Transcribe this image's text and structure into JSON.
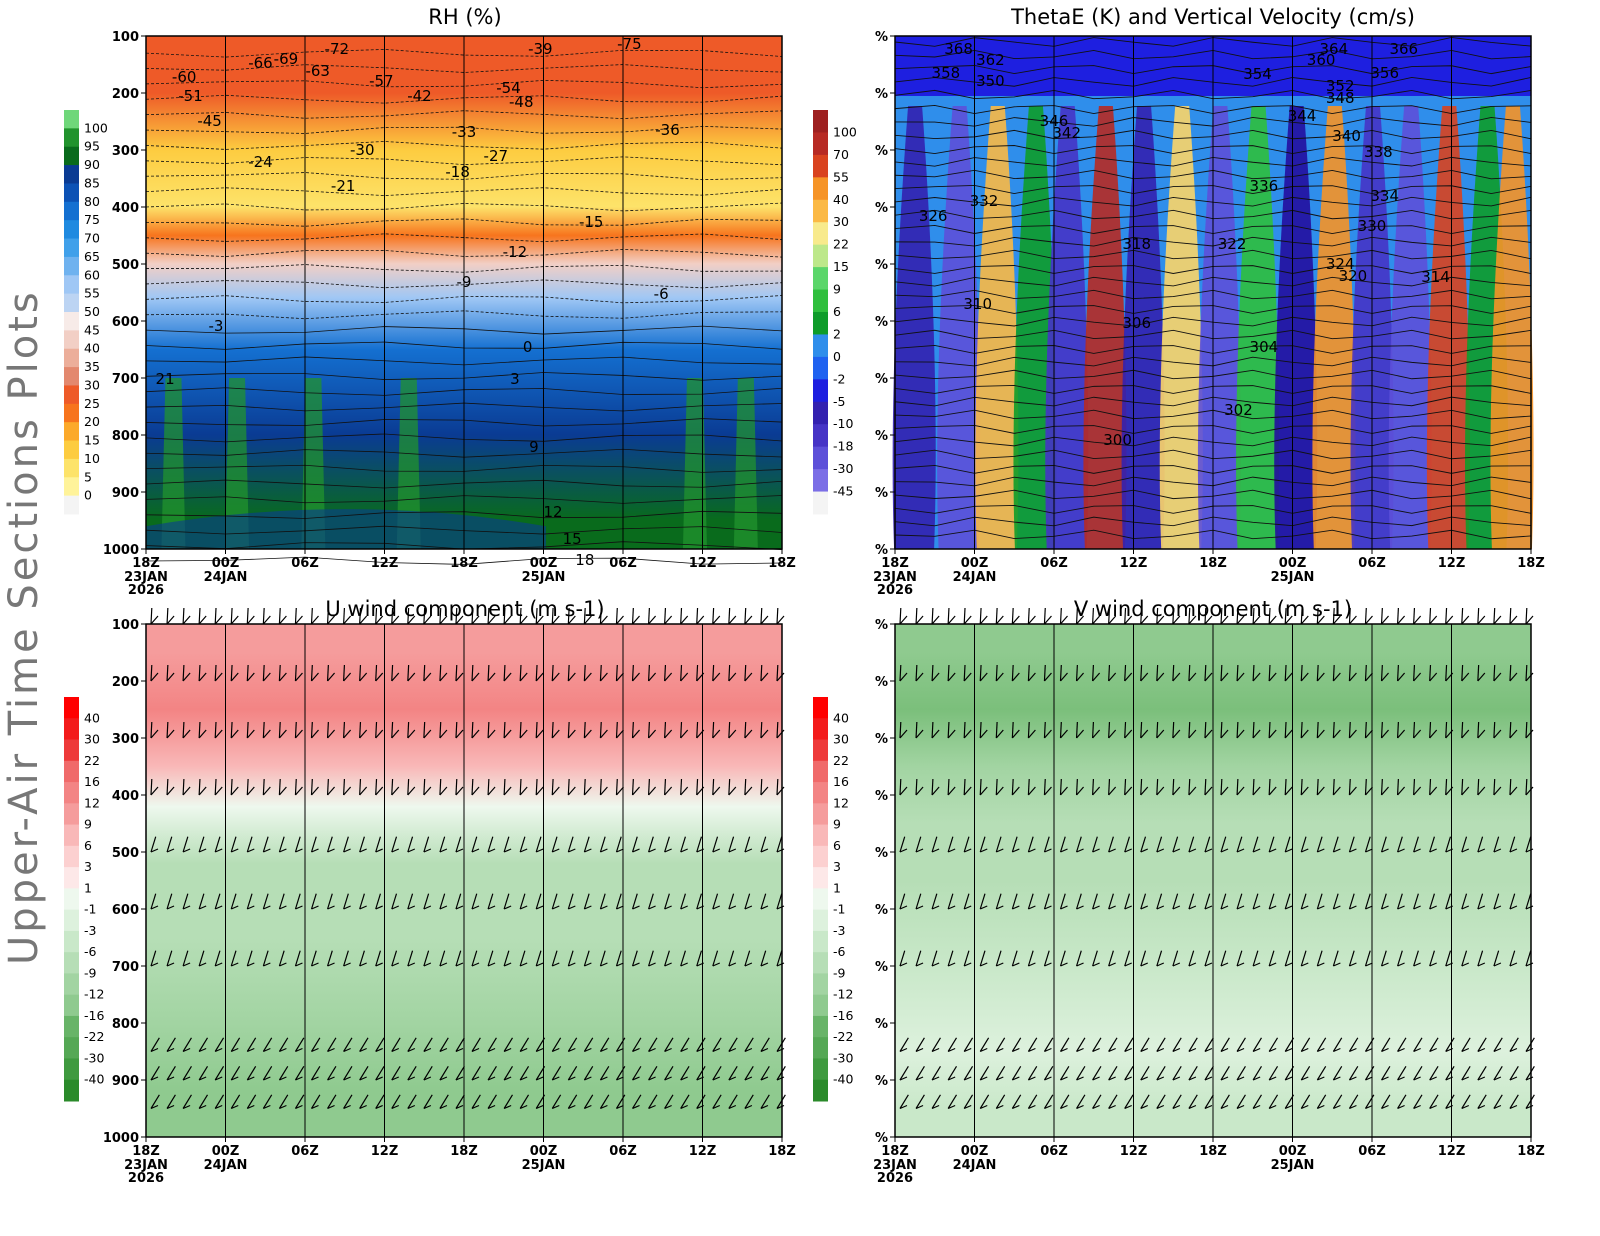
{
  "side_title": "Upper-Air Time Sections Plots",
  "time_axis": {
    "ticks": [
      {
        "label": "18Z",
        "sub": [
          "23JAN",
          "2026"
        ]
      },
      {
        "label": "00Z",
        "sub": [
          "24JAN"
        ]
      },
      {
        "label": "06Z",
        "sub": []
      },
      {
        "label": "12Z",
        "sub": []
      },
      {
        "label": "18Z",
        "sub": []
      },
      {
        "label": "00Z",
        "sub": [
          "25JAN"
        ]
      },
      {
        "label": "06Z",
        "sub": []
      },
      {
        "label": "12Z",
        "sub": []
      },
      {
        "label": "18Z",
        "sub": []
      }
    ]
  },
  "colors": {
    "rh_scale": [
      "#f4f4f4",
      "#fff39a",
      "#fde36a",
      "#fdcc40",
      "#fca92a",
      "#f7741d",
      "#ee5a28",
      "#e3886e",
      "#ecae9a",
      "#f2cfc5",
      "#f7ebe8",
      "#d9e7f9",
      "#bcd4f3",
      "#9fc7f5",
      "#6fb2ef",
      "#40a0ea",
      "#1f8ae0",
      "#1470d1",
      "#0c52b5",
      "#0a3b93",
      "#096b1c",
      "#21932d",
      "#6fd77a"
    ],
    "thetae_scale": [
      "#f4f4f4",
      "#7b6ee6",
      "#5d50d9",
      "#4634c6",
      "#3321b0",
      "#240ea0",
      "#1e1fe0",
      "#1f62f0",
      "#2f8eeb",
      "#0e9c2a",
      "#2fbf3d",
      "#5bd66a",
      "#bde88a",
      "#f8ea8c",
      "#fcd568",
      "#fbb945",
      "#f69427",
      "#d9431f",
      "#b72a24",
      "#9e2020"
    ],
    "wind_scale": [
      "#2a8a2a",
      "#3f9a3f",
      "#55a855",
      "#68b468",
      "#7bbf7b",
      "#8fca8f",
      "#a2d4a2",
      "#b6deb6",
      "#c9e8c9",
      "#ddf1dd",
      "#eef8ee",
      "#ffffff",
      "#fde8e8",
      "#fcd0d0",
      "#f9b8b8",
      "#f59c9c",
      "#f38484",
      "#f06a6a",
      "#ef5353",
      "#ee3a3a",
      "#f31b1b",
      "#ff0000"
    ]
  },
  "chart_data": [
    {
      "type": "heatmap",
      "title": "RH (%)",
      "xlabel": "",
      "ylabel": "",
      "x": [
        "18Z 23JAN 2026",
        "00Z 24JAN",
        "06Z",
        "12Z",
        "18Z",
        "00Z 25JAN",
        "06Z",
        "12Z",
        "18Z"
      ],
      "y_ticks": [
        "100",
        "200",
        "300",
        "400",
        "500",
        "600",
        "700",
        "800",
        "900",
        "1000"
      ],
      "colorbar": [
        "100",
        "95",
        "90",
        "85",
        "80",
        "75",
        "70",
        "65",
        "60",
        "55",
        "50",
        "45",
        "40",
        "35",
        "30",
        "25",
        "20",
        "15",
        "10",
        "5",
        "0"
      ],
      "contour_labels": [
        "-72",
        "-75",
        "-66",
        "-69",
        "-63",
        "-60",
        "-51",
        "-57",
        "-54",
        "-48",
        "-45",
        "-42",
        "-39",
        "-36",
        "-33",
        "-30",
        "-27",
        "-24",
        "-21",
        "-18",
        "-15",
        "-12",
        "-9",
        "-6",
        "-3",
        "0",
        "3",
        "9",
        "12",
        "15",
        "18",
        "21"
      ],
      "rh_by_level": [
        {
          "p": 200,
          "rh": 28
        },
        {
          "p": 300,
          "rh": 14
        },
        {
          "p": 400,
          "rh": 10
        },
        {
          "p": 450,
          "rh": 22
        },
        {
          "p": 500,
          "rh": 40
        },
        {
          "p": 560,
          "rh": 58
        },
        {
          "p": 650,
          "rh": 78
        },
        {
          "p": 800,
          "rh": 86
        },
        {
          "p": 950,
          "rh": 92
        }
      ]
    },
    {
      "type": "heatmap",
      "title": "ThetaE (K) and Vertical Velocity (cm/s)",
      "xlabel": "",
      "ylabel": "",
      "x": [
        "18Z 23JAN 2026",
        "00Z 24JAN",
        "06Z",
        "12Z",
        "18Z",
        "00Z 25JAN",
        "06Z",
        "12Z",
        "18Z"
      ],
      "y_ticks": [
        "%",
        "%",
        "%",
        "%",
        "%",
        "%",
        "%",
        "%",
        "%",
        "%"
      ],
      "colorbar": [
        "100",
        "70",
        "55",
        "40",
        "30",
        "22",
        "15",
        "9",
        "6",
        "2",
        "0",
        "-2",
        "-5",
        "-10",
        "-18",
        "-30",
        "-45"
      ],
      "contour_labels": [
        "368",
        "366",
        "364",
        "362",
        "360",
        "358",
        "356",
        "354",
        "352",
        "350",
        "348",
        "346",
        "344",
        "342",
        "340",
        "338",
        "336",
        "334",
        "332",
        "330",
        "326",
        "324",
        "322",
        "320",
        "318",
        "314",
        "310",
        "306",
        "304",
        "302",
        "300"
      ]
    },
    {
      "type": "heatmap",
      "title": "U wind component (m s-1)",
      "xlabel": "",
      "ylabel": "",
      "x": [
        "18Z 23JAN 2026",
        "00Z 24JAN",
        "06Z",
        "12Z",
        "18Z",
        "00Z 25JAN",
        "06Z",
        "12Z",
        "18Z"
      ],
      "y_ticks": [
        "100",
        "200",
        "300",
        "400",
        "500",
        "600",
        "700",
        "800",
        "900",
        "1000"
      ],
      "colorbar": [
        "40",
        "30",
        "22",
        "16",
        "12",
        "9",
        "6",
        "3",
        "1",
        "-1",
        "-3",
        "-6",
        "-9",
        "-12",
        "-16",
        "-22",
        "-30",
        "-40"
      ],
      "u_by_level": [
        {
          "p": 150,
          "u": 18
        },
        {
          "p": 250,
          "u": 30
        },
        {
          "p": 350,
          "u": 14
        },
        {
          "p": 420,
          "u": 2
        },
        {
          "p": 520,
          "u": -3
        },
        {
          "p": 650,
          "u": -5
        },
        {
          "p": 800,
          "u": -8
        },
        {
          "p": 920,
          "u": -10
        }
      ]
    },
    {
      "type": "heatmap",
      "title": "V wind component (m s-1)",
      "xlabel": "",
      "ylabel": "",
      "x": [
        "18Z 23JAN 2026",
        "00Z 24JAN",
        "06Z",
        "12Z",
        "18Z",
        "00Z 25JAN",
        "06Z",
        "12Z",
        "18Z"
      ],
      "y_ticks": [
        "%",
        "%",
        "%",
        "%",
        "%",
        "%",
        "%",
        "%",
        "%",
        "%"
      ],
      "colorbar": [
        "40",
        "30",
        "22",
        "16",
        "12",
        "9",
        "6",
        "3",
        "1",
        "-1",
        "-3",
        "-6",
        "-9",
        "-12",
        "-16",
        "-22",
        "-30",
        "-40"
      ],
      "v_by_level": [
        {
          "p": 150,
          "v": -9
        },
        {
          "p": 250,
          "v": -14
        },
        {
          "p": 350,
          "v": -8
        },
        {
          "p": 450,
          "v": -5
        },
        {
          "p": 550,
          "v": -3
        },
        {
          "p": 700,
          "v": -1
        },
        {
          "p": 850,
          "v": 0
        },
        {
          "p": 950,
          "v": -1
        }
      ]
    }
  ]
}
